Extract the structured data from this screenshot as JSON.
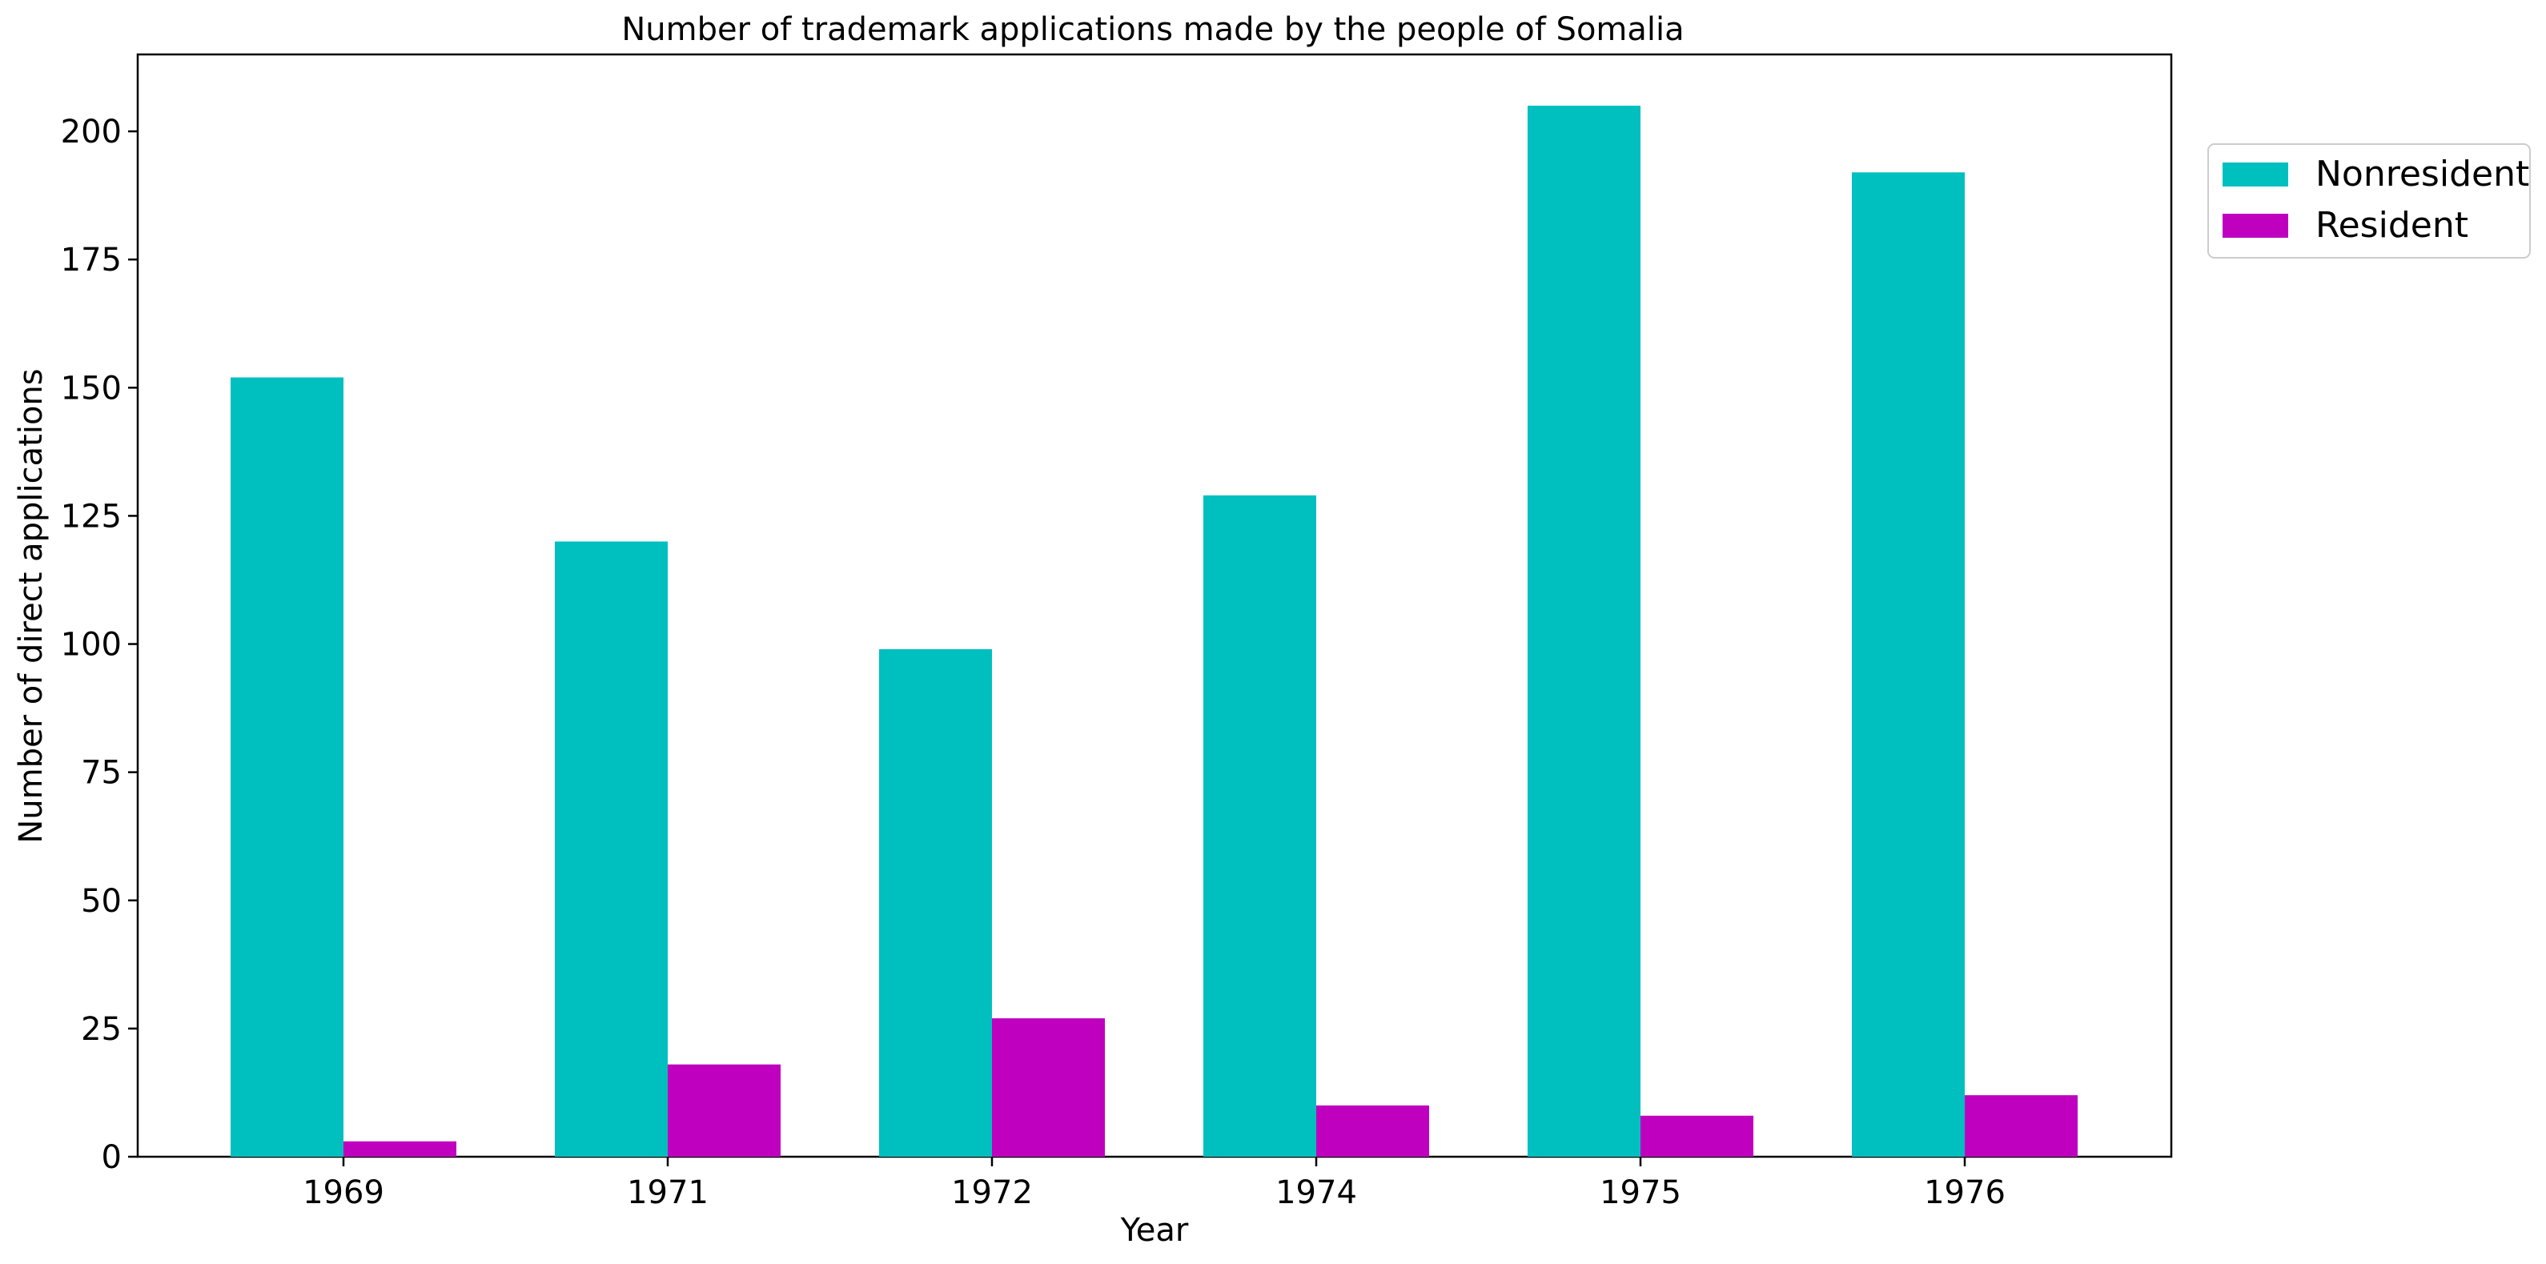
{
  "chart_data": {
    "type": "bar",
    "title": "Number of trademark applications made by the people of Somalia",
    "xlabel": "Year",
    "ylabel": "Number of direct applications",
    "categories": [
      "1969",
      "1971",
      "1972",
      "1974",
      "1975",
      "1976"
    ],
    "series": [
      {
        "name": "Nonresident",
        "color": "#00bfbf",
        "values": [
          152,
          120,
          99,
          129,
          205,
          192
        ]
      },
      {
        "name": "Resident",
        "color": "#bf00bf",
        "values": [
          3,
          18,
          27,
          10,
          8,
          12
        ]
      }
    ],
    "ylim": [
      0,
      215
    ],
    "yticks": [
      "0",
      "25",
      "50",
      "75",
      "100",
      "125",
      "150",
      "175",
      "200"
    ],
    "grid": false,
    "legend_position": "outside-top-right"
  }
}
